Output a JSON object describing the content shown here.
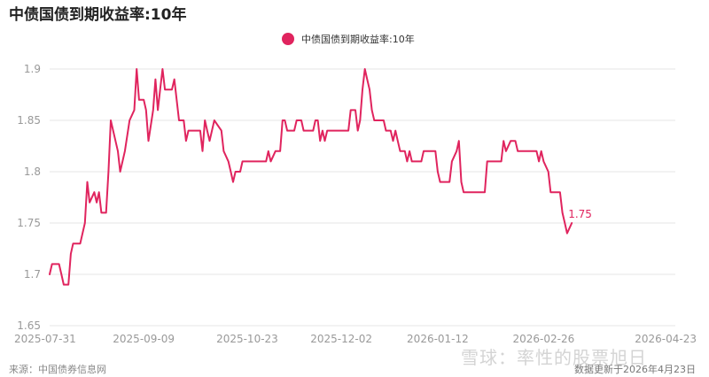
{
  "title": "中债国债到期收益率:10年",
  "source": "来源：中国债券信息网",
  "update_text": "数据更新于2026年4月23日",
  "watermark": "雪球：率性的股票旭日",
  "colors": {
    "series": "#e0245e",
    "grid": "#e6e6e6",
    "tick": "#999999"
  },
  "chart_data": {
    "type": "line",
    "title": "中债国债到期收益率:10年",
    "legend": "top-center",
    "grid": true,
    "ylim": [
      1.65,
      1.9
    ],
    "yticks": [
      1.65,
      1.7,
      1.75,
      1.8,
      1.85,
      1.9
    ],
    "ytick_labels": [
      "1.65",
      "1.7",
      "1.75",
      "1.8",
      "1.85",
      "1.9"
    ],
    "xlim": [
      "2025-07-31",
      "2026-04-23"
    ],
    "xtick_labels": [
      "2025-07-31",
      "2025-09-09",
      "2025-10-23",
      "2025-12-02",
      "2026-01-12",
      "2026-02-26",
      "2026-04-23"
    ],
    "last_value_label": "1.75",
    "series": [
      {
        "name": "中债国债到期收益率:10年",
        "points": [
          [
            "2025-07-31",
            1.7
          ],
          [
            "2025-08-01",
            1.71
          ],
          [
            "2025-08-04",
            1.71
          ],
          [
            "2025-08-05",
            1.7
          ],
          [
            "2025-08-06",
            1.69
          ],
          [
            "2025-08-08",
            1.69
          ],
          [
            "2025-08-09",
            1.72
          ],
          [
            "2025-08-10",
            1.73
          ],
          [
            "2025-08-13",
            1.73
          ],
          [
            "2025-08-15",
            1.75
          ],
          [
            "2025-08-16",
            1.79
          ],
          [
            "2025-08-17",
            1.77
          ],
          [
            "2025-08-19",
            1.78
          ],
          [
            "2025-08-20",
            1.77
          ],
          [
            "2025-08-21",
            1.78
          ],
          [
            "2025-08-22",
            1.76
          ],
          [
            "2025-08-24",
            1.76
          ],
          [
            "2025-08-25",
            1.8
          ],
          [
            "2025-08-26",
            1.85
          ],
          [
            "2025-08-29",
            1.82
          ],
          [
            "2025-08-30",
            1.8
          ],
          [
            "2025-09-01",
            1.82
          ],
          [
            "2025-09-03",
            1.85
          ],
          [
            "2025-09-05",
            1.86
          ],
          [
            "2025-09-06",
            1.9
          ],
          [
            "2025-09-07",
            1.87
          ],
          [
            "2025-09-09",
            1.87
          ],
          [
            "2025-09-10",
            1.86
          ],
          [
            "2025-09-11",
            1.83
          ],
          [
            "2025-09-13",
            1.86
          ],
          [
            "2025-09-14",
            1.89
          ],
          [
            "2025-09-15",
            1.86
          ],
          [
            "2025-09-16",
            1.88
          ],
          [
            "2025-09-17",
            1.9
          ],
          [
            "2025-09-18",
            1.88
          ],
          [
            "2025-09-21",
            1.88
          ],
          [
            "2025-09-22",
            1.89
          ],
          [
            "2025-09-24",
            1.85
          ],
          [
            "2025-09-26",
            1.85
          ],
          [
            "2025-09-27",
            1.83
          ],
          [
            "2025-09-28",
            1.84
          ],
          [
            "2025-10-03",
            1.84
          ],
          [
            "2025-10-04",
            1.82
          ],
          [
            "2025-10-05",
            1.85
          ],
          [
            "2025-10-06",
            1.84
          ],
          [
            "2025-10-07",
            1.83
          ],
          [
            "2025-10-09",
            1.85
          ],
          [
            "2025-10-12",
            1.84
          ],
          [
            "2025-10-13",
            1.82
          ],
          [
            "2025-10-15",
            1.81
          ],
          [
            "2025-10-16",
            1.8
          ],
          [
            "2025-10-17",
            1.79
          ],
          [
            "2025-10-18",
            1.8
          ],
          [
            "2025-10-20",
            1.8
          ],
          [
            "2025-10-21",
            1.81
          ],
          [
            "2025-10-31",
            1.81
          ],
          [
            "2025-11-01",
            1.82
          ],
          [
            "2025-11-02",
            1.81
          ],
          [
            "2025-11-04",
            1.82
          ],
          [
            "2025-11-06",
            1.82
          ],
          [
            "2025-11-07",
            1.85
          ],
          [
            "2025-11-08",
            1.85
          ],
          [
            "2025-11-09",
            1.84
          ],
          [
            "2025-11-12",
            1.84
          ],
          [
            "2025-11-13",
            1.85
          ],
          [
            "2025-11-15",
            1.85
          ],
          [
            "2025-11-16",
            1.84
          ],
          [
            "2025-11-20",
            1.84
          ],
          [
            "2025-11-21",
            1.85
          ],
          [
            "2025-11-22",
            1.85
          ],
          [
            "2025-11-23",
            1.83
          ],
          [
            "2025-11-24",
            1.84
          ],
          [
            "2025-11-25",
            1.83
          ],
          [
            "2025-11-26",
            1.84
          ],
          [
            "2025-12-05",
            1.84
          ],
          [
            "2025-12-06",
            1.86
          ],
          [
            "2025-12-08",
            1.86
          ],
          [
            "2025-12-09",
            1.84
          ],
          [
            "2025-12-10",
            1.85
          ],
          [
            "2025-12-11",
            1.88
          ],
          [
            "2025-12-12",
            1.9
          ],
          [
            "2025-12-13",
            1.89
          ],
          [
            "2025-12-14",
            1.88
          ],
          [
            "2025-12-15",
            1.86
          ],
          [
            "2025-12-16",
            1.85
          ],
          [
            "2025-12-20",
            1.85
          ],
          [
            "2025-12-21",
            1.84
          ],
          [
            "2025-12-23",
            1.84
          ],
          [
            "2025-12-24",
            1.83
          ],
          [
            "2025-12-25",
            1.84
          ],
          [
            "2025-12-26",
            1.83
          ],
          [
            "2025-12-27",
            1.82
          ],
          [
            "2025-12-29",
            1.82
          ],
          [
            "2025-12-30",
            1.81
          ],
          [
            "2025-12-31",
            1.82
          ],
          [
            "2026-01-01",
            1.81
          ],
          [
            "2026-01-05",
            1.81
          ],
          [
            "2026-01-06",
            1.82
          ],
          [
            "2026-01-11",
            1.82
          ],
          [
            "2026-01-12",
            1.8
          ],
          [
            "2026-01-13",
            1.79
          ],
          [
            "2026-01-17",
            1.79
          ],
          [
            "2026-01-18",
            1.81
          ],
          [
            "2026-01-20",
            1.82
          ],
          [
            "2026-01-21",
            1.83
          ],
          [
            "2026-01-22",
            1.79
          ],
          [
            "2026-01-23",
            1.78
          ],
          [
            "2026-02-01",
            1.78
          ],
          [
            "2026-02-02",
            1.81
          ],
          [
            "2026-02-08",
            1.81
          ],
          [
            "2026-02-09",
            1.83
          ],
          [
            "2026-02-10",
            1.82
          ],
          [
            "2026-02-12",
            1.83
          ],
          [
            "2026-02-14",
            1.83
          ],
          [
            "2026-02-15",
            1.82
          ],
          [
            "2026-02-23",
            1.82
          ],
          [
            "2026-02-24",
            1.81
          ],
          [
            "2026-02-25",
            1.82
          ],
          [
            "2026-02-26",
            1.81
          ],
          [
            "2026-02-28",
            1.8
          ],
          [
            "2026-03-01",
            1.78
          ],
          [
            "2026-03-05",
            1.78
          ],
          [
            "2026-03-06",
            1.76
          ],
          [
            "2026-03-07",
            1.75
          ],
          [
            "2026-03-08",
            1.74
          ],
          [
            "2026-03-10",
            1.75
          ]
        ]
      }
    ]
  }
}
